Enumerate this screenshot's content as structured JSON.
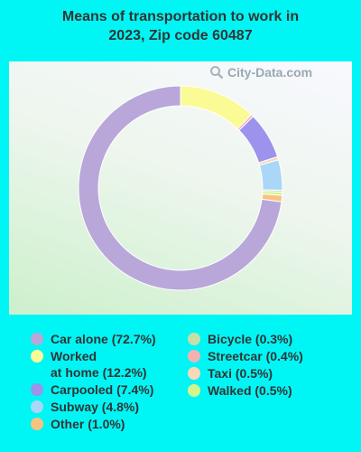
{
  "chart_data": {
    "type": "pie",
    "title": "Means of transportation to work in 2023, Zip code 60487",
    "slices": [
      {
        "label": "Car alone (72.7%)",
        "value": 72.7,
        "color": "#b9a7da"
      },
      {
        "label": "Worked at home (12.2%)",
        "value": 12.2,
        "color": "#fbfb96"
      },
      {
        "label": "Streetcar (0.4%)",
        "value": 0.4,
        "color": "#f2b2b2"
      },
      {
        "label": "Carpooled (7.4%)",
        "value": 7.4,
        "color": "#9b93ec"
      },
      {
        "label": "Taxi (0.5%)",
        "value": 0.5,
        "color": "#f8d8b8"
      },
      {
        "label": "Subway (4.8%)",
        "value": 4.8,
        "color": "#aad6f8"
      },
      {
        "label": "Bicycle (0.3%)",
        "value": 0.3,
        "color": "#c6dfa8"
      },
      {
        "label": "Walked (0.5%)",
        "value": 0.5,
        "color": "#d4f58a"
      },
      {
        "label": "Other (1.0%)",
        "value": 1.0,
        "color": "#f8c380"
      }
    ],
    "legend": {
      "placement": "bottom",
      "left_column": [
        {
          "lines": [
            "Car alone (72.7%)"
          ],
          "color": "#b9a7da"
        },
        {
          "lines": [
            "Worked",
            "at home (12.2%)"
          ],
          "color": "#fbfb96"
        },
        {
          "lines": [
            "Carpooled (7.4%)"
          ],
          "color": "#9b93ec"
        },
        {
          "lines": [
            "Subway (4.8%)"
          ],
          "color": "#aad6f8"
        },
        {
          "lines": [
            "Other (1.0%)"
          ],
          "color": "#f8c380"
        }
      ],
      "right_column": [
        {
          "lines": [
            "Bicycle (0.3%)"
          ],
          "color": "#c6dfa8"
        },
        {
          "lines": [
            "Streetcar (0.4%)"
          ],
          "color": "#f2b2b2"
        },
        {
          "lines": [
            "Taxi (0.5%)"
          ],
          "color": "#f8d8b8"
        },
        {
          "lines": [
            "Walked (0.5%)"
          ],
          "color": "#d4f58a"
        }
      ]
    }
  },
  "header": {
    "title_line1": "Means of transportation to work in",
    "title_line2": "2023, Zip code 60487"
  },
  "watermark": {
    "text": "City-Data.com",
    "icon": "magnifier-icon"
  }
}
